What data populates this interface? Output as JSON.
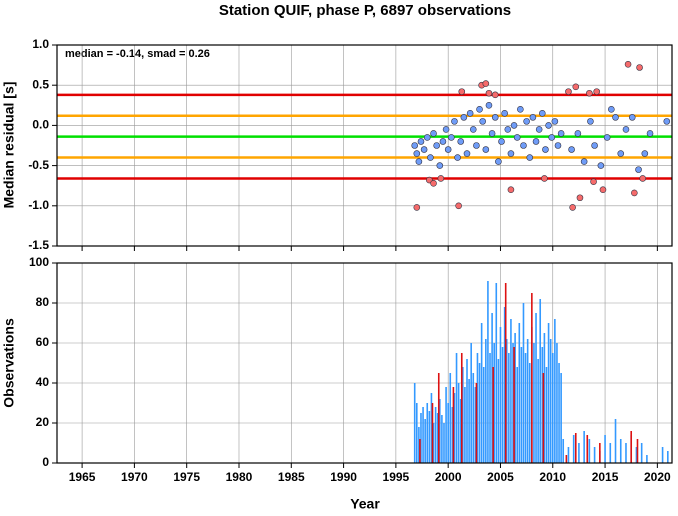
{
  "chart_data": [
    {
      "type": "scatter",
      "title": "Station QUIF, phase P, 6897 observations",
      "ylabel": "Median residual [s]",
      "annotation": "median = -0.14, smad = 0.26",
      "xlim": [
        1962.6,
        2021.4
      ],
      "xticks": [
        1965,
        1970,
        1975,
        1980,
        1985,
        1990,
        1995,
        2000,
        2005,
        2010,
        2015,
        2020
      ],
      "ylim": [
        -1.5,
        1.0
      ],
      "yticks": [
        {
          "value": -1.5,
          "label": "-1.5"
        },
        {
          "value": -1.0,
          "label": "-1.0"
        },
        {
          "value": -0.5,
          "label": "-0.5"
        },
        {
          "value": 0.0,
          "label": "0.0"
        },
        {
          "value": 0.5,
          "label": "0.5"
        },
        {
          "value": 1.0,
          "label": "1.0"
        }
      ],
      "grid": true,
      "hlines": [
        {
          "value": 0.38,
          "color": "#e00000"
        },
        {
          "value": -0.66,
          "color": "#e00000"
        },
        {
          "value": 0.12,
          "color": "#ffa500"
        },
        {
          "value": -0.4,
          "color": "#ffa500"
        },
        {
          "value": -0.14,
          "color": "#00e000"
        }
      ],
      "series": [
        {
          "color": "#6f9cf7",
          "x": [
            1996.8,
            1997.0,
            1997.2,
            1997.4,
            1997.7,
            1998.0,
            1998.3,
            1998.6,
            1998.9,
            1999.2,
            1999.5,
            1999.8,
            2000.0,
            2000.3,
            2000.6,
            2000.9,
            2001.2,
            2001.5,
            2001.8,
            2002.1,
            2002.4,
            2002.7,
            2003.0,
            2003.3,
            2003.6,
            2003.9,
            2004.2,
            2004.5,
            2004.8,
            2005.1,
            2005.4,
            2005.7,
            2006.0,
            2006.3,
            2006.6,
            2006.9,
            2007.2,
            2007.5,
            2007.8,
            2008.1,
            2008.4,
            2008.7,
            2009.0,
            2009.3,
            2009.6,
            2009.9,
            2010.2,
            2010.5,
            2010.8,
            2011.8,
            2012.4,
            2013.0,
            2013.6,
            2014.0,
            2014.6,
            2015.2,
            2015.6,
            2016.0,
            2016.5,
            2017.0,
            2017.6,
            2018.2,
            2018.8,
            2019.3,
            2020.9
          ],
          "values": [
            -0.25,
            -0.35,
            -0.45,
            -0.2,
            -0.3,
            -0.15,
            -0.4,
            -0.1,
            -0.25,
            -0.5,
            -0.2,
            -0.05,
            -0.3,
            -0.15,
            0.05,
            -0.4,
            -0.2,
            0.1,
            -0.35,
            0.15,
            -0.05,
            -0.25,
            0.2,
            0.05,
            -0.3,
            0.25,
            -0.1,
            0.1,
            -0.45,
            -0.2,
            0.15,
            -0.05,
            -0.35,
            0.0,
            -0.15,
            0.2,
            -0.25,
            0.05,
            -0.4,
            0.1,
            -0.2,
            -0.05,
            0.15,
            -0.3,
            0.0,
            -0.15,
            0.05,
            -0.25,
            -0.1,
            -0.3,
            -0.1,
            -0.45,
            0.05,
            -0.25,
            -0.5,
            -0.15,
            0.2,
            0.1,
            -0.35,
            -0.05,
            0.1,
            -0.55,
            -0.35,
            -0.1,
            0.05
          ]
        },
        {
          "color": "#f56b6b",
          "x": [
            1997.0,
            1998.2,
            1998.6,
            1999.3,
            2001.0,
            2001.3,
            2003.2,
            2003.6,
            2003.9,
            2004.5,
            2006.0,
            2009.2,
            2011.5,
            2011.9,
            2012.2,
            2012.6,
            2013.5,
            2013.9,
            2014.2,
            2014.8,
            2017.2,
            2017.8,
            2018.3,
            2018.6
          ],
          "values": [
            -1.02,
            -0.68,
            -0.72,
            -0.66,
            -1.0,
            0.42,
            0.5,
            0.52,
            0.4,
            0.38,
            -0.8,
            -0.66,
            0.42,
            -1.02,
            0.48,
            -0.9,
            0.4,
            -0.7,
            0.42,
            -0.8,
            0.76,
            -0.84,
            0.72,
            -0.66
          ]
        }
      ]
    },
    {
      "type": "bar",
      "ylabel": "Observations",
      "xlabel": "Year",
      "xlim": [
        1962.6,
        2021.4
      ],
      "xticks": [
        1965,
        1970,
        1975,
        1980,
        1985,
        1990,
        1995,
        2000,
        2005,
        2010,
        2015,
        2020
      ],
      "ylim": [
        0,
        100
      ],
      "yticks": [
        0,
        20,
        40,
        60,
        80,
        100
      ],
      "grid": true,
      "series": [
        {
          "color": "#3399ff",
          "x": [
            1996.8,
            1997.0,
            1997.2,
            1997.4,
            1997.6,
            1997.8,
            1998.0,
            1998.2,
            1998.4,
            1998.6,
            1998.8,
            1999.0,
            1999.2,
            1999.4,
            1999.6,
            1999.8,
            2000.0,
            2000.2,
            2000.4,
            2000.6,
            2000.8,
            2001.0,
            2001.2,
            2001.4,
            2001.6,
            2001.8,
            2002.0,
            2002.2,
            2002.4,
            2002.6,
            2002.8,
            2003.0,
            2003.2,
            2003.4,
            2003.6,
            2003.8,
            2004.0,
            2004.2,
            2004.4,
            2004.6,
            2004.8,
            2005.0,
            2005.2,
            2005.4,
            2005.6,
            2005.8,
            2006.0,
            2006.2,
            2006.4,
            2006.6,
            2006.8,
            2007.0,
            2007.2,
            2007.4,
            2007.6,
            2007.8,
            2008.0,
            2008.2,
            2008.4,
            2008.6,
            2008.8,
            2009.0,
            2009.2,
            2009.4,
            2009.6,
            2009.8,
            2010.0,
            2010.2,
            2010.4,
            2010.6,
            2010.8,
            2011.0,
            2011.5,
            2012.0,
            2012.5,
            2013.0,
            2013.5,
            2014.0,
            2014.5,
            2015.0,
            2015.5,
            2016.0,
            2016.5,
            2017.0,
            2017.5,
            2018.0,
            2018.5,
            2019.0,
            2020.5,
            2021.0
          ],
          "values": [
            40,
            30,
            18,
            25,
            28,
            22,
            30,
            26,
            35,
            20,
            28,
            25,
            32,
            24,
            20,
            38,
            30,
            45,
            28,
            35,
            55,
            40,
            32,
            48,
            38,
            52,
            42,
            60,
            45,
            38,
            55,
            50,
            70,
            48,
            62,
            91,
            55,
            75,
            60,
            90,
            52,
            68,
            58,
            78,
            62,
            55,
            72,
            60,
            65,
            48,
            70,
            58,
            80,
            55,
            62,
            50,
            68,
            60,
            75,
            52,
            82,
            58,
            65,
            48,
            70,
            62,
            55,
            72,
            60,
            50,
            45,
            12,
            8,
            14,
            10,
            16,
            12,
            8,
            6,
            14,
            10,
            22,
            12,
            10,
            14,
            8,
            10,
            4,
            8,
            6
          ]
        },
        {
          "color": "#dd1111",
          "x": [
            1997.3,
            1998.5,
            1999.1,
            2000.5,
            2001.3,
            2002.7,
            2004.3,
            2005.5,
            2006.3,
            2008.0,
            2009.1,
            2011.3,
            2012.2,
            2013.3,
            2014.5,
            2017.5,
            2018.1
          ],
          "values": [
            12,
            30,
            45,
            38,
            55,
            40,
            48,
            90,
            58,
            85,
            45,
            4,
            15,
            14,
            10,
            16,
            12
          ]
        }
      ]
    }
  ]
}
